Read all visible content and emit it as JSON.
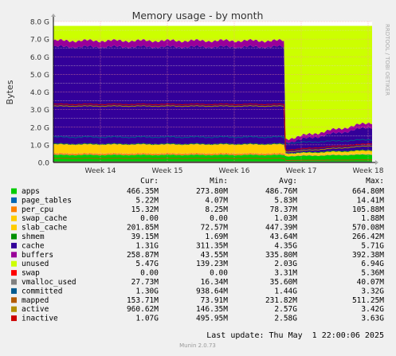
{
  "chart_data": {
    "type": "area",
    "title": "Memory usage - by month",
    "ylabel": "Bytes",
    "watermark": "RRDTOOL / TOBI OETIKER",
    "x_ticks": [
      "Week 14",
      "Week 15",
      "Week 16",
      "Week 17",
      "Week 18"
    ],
    "y_ticks": [
      "0.0",
      "1.0 G",
      "2.0 G",
      "3.0 G",
      "4.0 G",
      "5.0 G",
      "6.0 G",
      "7.0 G",
      "8.0 G"
    ],
    "ylim": [
      0,
      8
    ],
    "grid": true,
    "total_ram_gb": 7.75,
    "columns": [
      "Cur:",
      "Min:",
      "Avg:",
      "Max:"
    ],
    "series": [
      {
        "name": "apps",
        "color": "#00cc00",
        "cur": "466.35M",
        "min": "273.80M",
        "avg": "486.76M",
        "max": "664.80M"
      },
      {
        "name": "page_tables",
        "color": "#0066b3",
        "cur": "5.22M",
        "min": "4.07M",
        "avg": "5.83M",
        "max": "14.41M"
      },
      {
        "name": "per_cpu",
        "color": "#ff8000",
        "cur": "15.32M",
        "min": "8.25M",
        "avg": "78.37M",
        "max": "105.88M"
      },
      {
        "name": "swap_cache",
        "color": "#ffcc00",
        "cur": "0.00",
        "min": "0.00",
        "avg": "1.03M",
        "max": "1.88M"
      },
      {
        "name": "slab_cache",
        "color": "#ffcc00",
        "cur": "201.85M",
        "min": "72.57M",
        "avg": "447.39M",
        "max": "570.08M"
      },
      {
        "name": "shmem",
        "color": "#008f00",
        "cur": "39.15M",
        "min": "1.69M",
        "avg": "43.64M",
        "max": "266.42M"
      },
      {
        "name": "cache",
        "color": "#330099",
        "cur": "1.31G",
        "min": "311.35M",
        "avg": "4.35G",
        "max": "5.71G"
      },
      {
        "name": "buffers",
        "color": "#990099",
        "cur": "258.87M",
        "min": "43.55M",
        "avg": "335.80M",
        "max": "392.38M"
      },
      {
        "name": "unused",
        "color": "#ccff00",
        "cur": "5.47G",
        "min": "139.23M",
        "avg": "2.03G",
        "max": "6.94G"
      },
      {
        "name": "swap",
        "color": "#ff0000",
        "cur": "0.00",
        "min": "0.00",
        "avg": "3.31M",
        "max": "5.36M"
      },
      {
        "name": "vmalloc_used",
        "color": "#808080",
        "cur": "27.73M",
        "min": "16.34M",
        "avg": "35.60M",
        "max": "40.07M"
      },
      {
        "name": "committed",
        "color": "#005a8f",
        "cur": "1.30G",
        "min": "938.64M",
        "avg": "1.44G",
        "max": "3.32G"
      },
      {
        "name": "mapped",
        "color": "#b35a00",
        "cur": "153.71M",
        "min": "73.91M",
        "avg": "231.82M",
        "max": "511.25M"
      },
      {
        "name": "active",
        "color": "#b38f00",
        "cur": "960.62M",
        "min": "146.35M",
        "avg": "2.57G",
        "max": "3.42G"
      },
      {
        "name": "inactive",
        "color": "#cc0000",
        "cur": "1.07G",
        "min": "495.95M",
        "avg": "2.58G",
        "max": "3.63G"
      }
    ]
  },
  "footer": {
    "last_update": "Last update: Thu May  1 22:00:06 2025",
    "version": "Munin 2.0.73"
  }
}
